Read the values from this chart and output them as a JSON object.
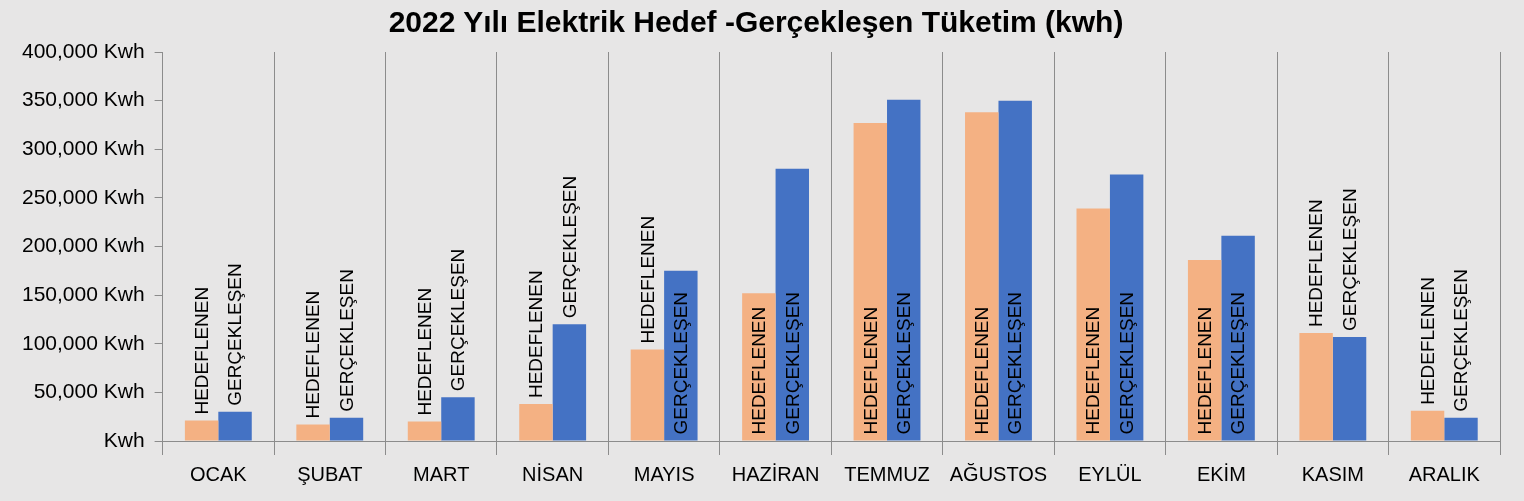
{
  "chart_data": {
    "type": "bar",
    "title": "2022 Yılı Elektrik Hedef -Gerçekleşen Tüketim (kwh)",
    "categories": [
      "OCAK",
      "ŞUBAT",
      "MART",
      "NİSAN",
      "MAYIS",
      "HAZİRAN",
      "TEMMUZ",
      "AĞUSTOS",
      "EYLÜL",
      "EKİM",
      "KASIM",
      "ARALIK"
    ],
    "series": [
      {
        "name": "HEDEFLENEN",
        "color": "#f4b183",
        "values": [
          21000,
          17000,
          20000,
          38000,
          94000,
          152000,
          327000,
          338000,
          239000,
          186000,
          111000,
          31000
        ]
      },
      {
        "name": "GERÇEKLEŞEN",
        "color": "#4472c4",
        "values": [
          30000,
          24000,
          45000,
          120000,
          175000,
          280000,
          351000,
          350000,
          274000,
          211000,
          107000,
          24000
        ]
      }
    ],
    "ylim": [
      0,
      400000
    ],
    "yticks": [
      {
        "value": 0,
        "label": "Kwh"
      },
      {
        "value": 50000,
        "label": "50,000 Kwh"
      },
      {
        "value": 100000,
        "label": "100,000 Kwh"
      },
      {
        "value": 150000,
        "label": "150,000 Kwh"
      },
      {
        "value": 200000,
        "label": "200,000 Kwh"
      },
      {
        "value": 250000,
        "label": "250,000 Kwh"
      },
      {
        "value": 300000,
        "label": "300,000 Kwh"
      },
      {
        "value": 350000,
        "label": "350,000 Kwh"
      },
      {
        "value": 400000,
        "label": "400,000 Kwh"
      }
    ],
    "grid": "x"
  }
}
